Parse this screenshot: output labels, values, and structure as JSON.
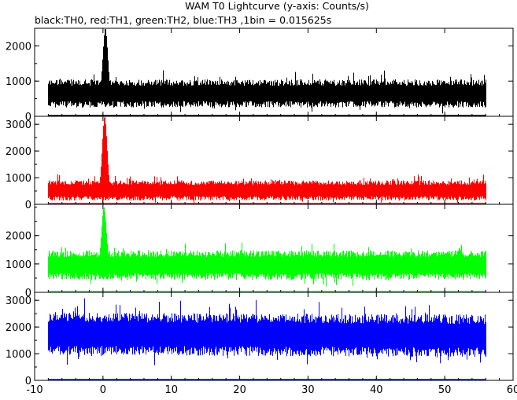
{
  "chart_data": {
    "type": "line",
    "title": "WAM T0 Lightcurve (y-axis: Counts/s)",
    "subtitle": "black:TH0, red:TH1, green:TH2, blue:TH3 ,1bin = 0.015625s",
    "x_ticks": [
      -10,
      0,
      10,
      20,
      30,
      40,
      50,
      60
    ],
    "xlim": [
      -10,
      60
    ],
    "data_xrange": [
      -8,
      56
    ],
    "bin_seconds": 0.015625,
    "panels": [
      {
        "name": "TH0",
        "color": "#000000",
        "ylim": [
          0,
          2500
        ],
        "y_ticks": [
          0,
          1000,
          2000
        ],
        "baseline": 650,
        "noise_halfwidth": 400,
        "peak": {
          "x": 0.3,
          "y": 2500
        },
        "slow_trend": 0
      },
      {
        "name": "TH1",
        "color": "#ff0000",
        "ylim": [
          0,
          3300
        ],
        "y_ticks": [
          0,
          1000,
          2000,
          3000
        ],
        "baseline": 520,
        "noise_halfwidth": 380,
        "peak": {
          "x": 0.2,
          "y": 3300
        },
        "slow_trend": 0
      },
      {
        "name": "TH2",
        "color": "#00ff00",
        "ylim": [
          0,
          3100
        ],
        "y_ticks": [
          0,
          1000,
          2000
        ],
        "baseline": 960,
        "noise_halfwidth": 520,
        "peak": {
          "x": 0.1,
          "y": 3000
        },
        "slow_trend": 0
      },
      {
        "name": "TH3",
        "color": "#0000ff",
        "ylim": [
          0,
          3300
        ],
        "y_ticks": [
          0,
          1000,
          2000,
          3000
        ],
        "baseline": 1750,
        "noise_halfwidth": 800,
        "peak": null,
        "slow_trend": -80
      }
    ]
  }
}
